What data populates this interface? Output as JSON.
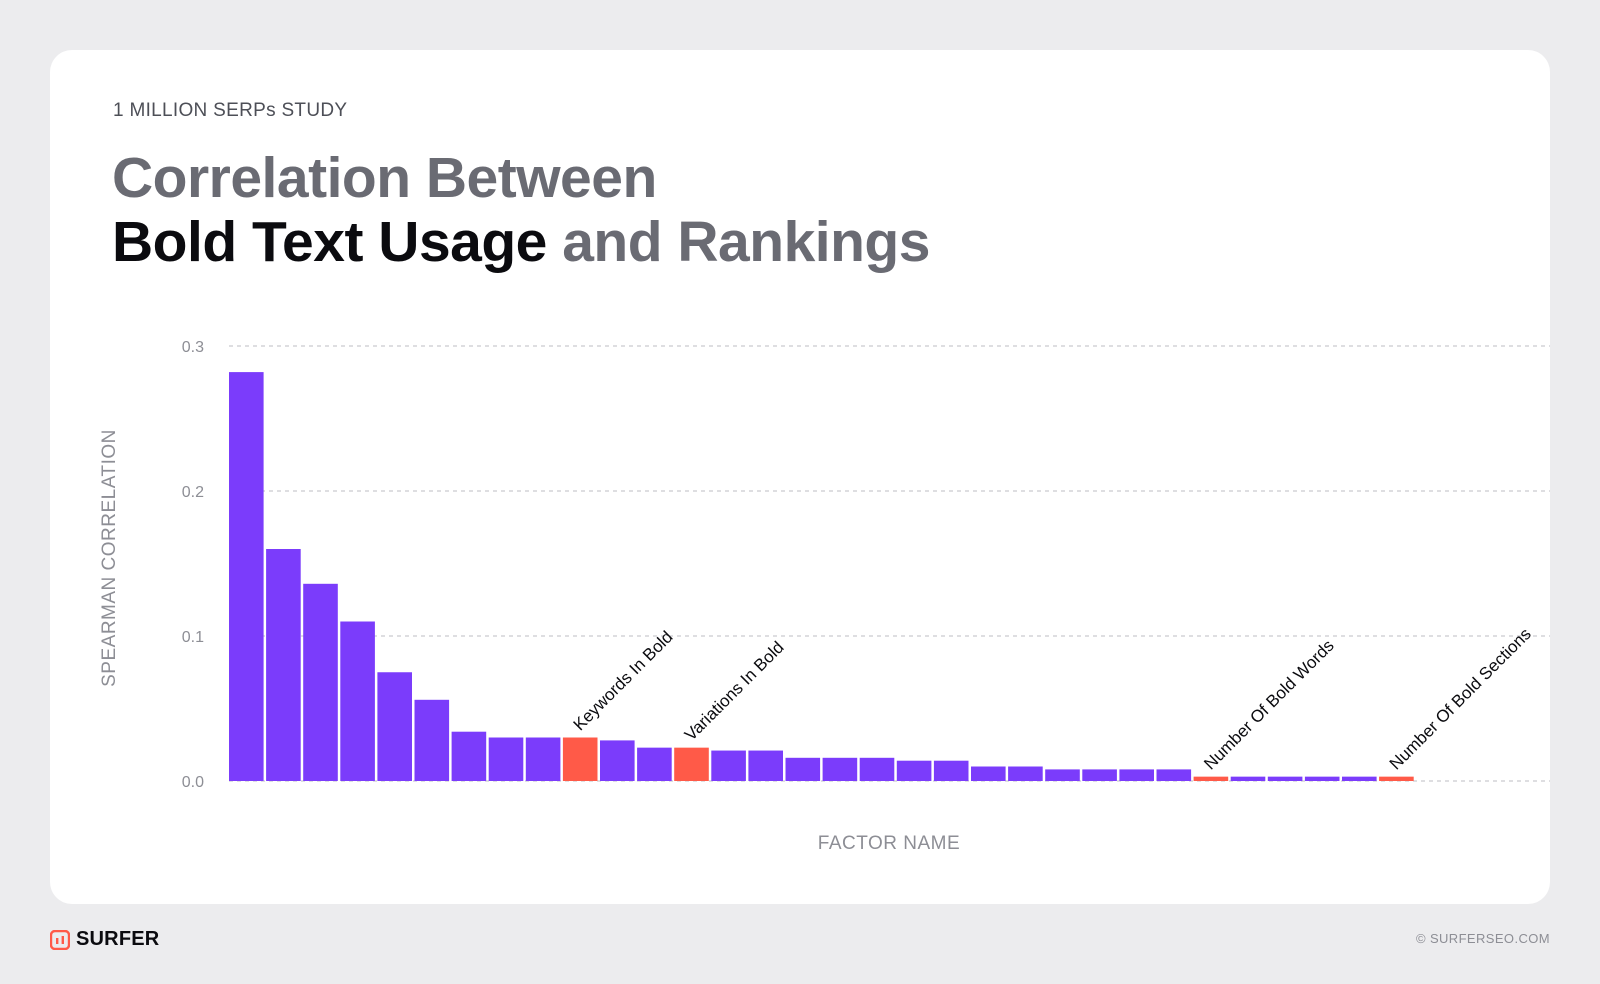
{
  "header": {
    "eyebrow": "1 MILLION SERPs STUDY",
    "title_line1": "Correlation Between",
    "title_bold": "Bold Text Usage",
    "title_rest": " and Rankings"
  },
  "footer": {
    "brand": "SURFER",
    "copyright": "© SURFERSEO.COM"
  },
  "colors": {
    "primary_bar": "#7b3cfb",
    "highlight_bar": "#ff5a48",
    "grid": "#bdbdc3",
    "axis_text": "#8d8e95"
  },
  "chart_data": {
    "type": "bar",
    "title": "",
    "xlabel": "FACTOR NAME",
    "ylabel": "SPEARMAN CORRELATION",
    "ylim": [
      0,
      0.3
    ],
    "yticks": [
      "0.0",
      "0.1",
      "0.2",
      "0.3"
    ],
    "grid": true,
    "categories": [
      "",
      "",
      "",
      "",
      "",
      "",
      "",
      "",
      "",
      "Keywords In Bold",
      "",
      "",
      "Variations In Bold",
      "",
      "",
      "",
      "",
      "",
      "",
      "",
      "",
      "",
      "",
      "",
      "",
      "",
      "Number Of Bold Words",
      "",
      "",
      "",
      "",
      "Number Of Bold Sections"
    ],
    "values": [
      0.282,
      0.16,
      0.136,
      0.11,
      0.075,
      0.056,
      0.034,
      0.03,
      0.03,
      0.03,
      0.028,
      0.023,
      0.023,
      0.021,
      0.021,
      0.016,
      0.016,
      0.016,
      0.014,
      0.014,
      0.01,
      0.01,
      0.008,
      0.008,
      0.008,
      0.008,
      0.003,
      0.003,
      0.003,
      0.003,
      0.003,
      0.003
    ],
    "highlighted": [
      9,
      12,
      26,
      31
    ]
  }
}
